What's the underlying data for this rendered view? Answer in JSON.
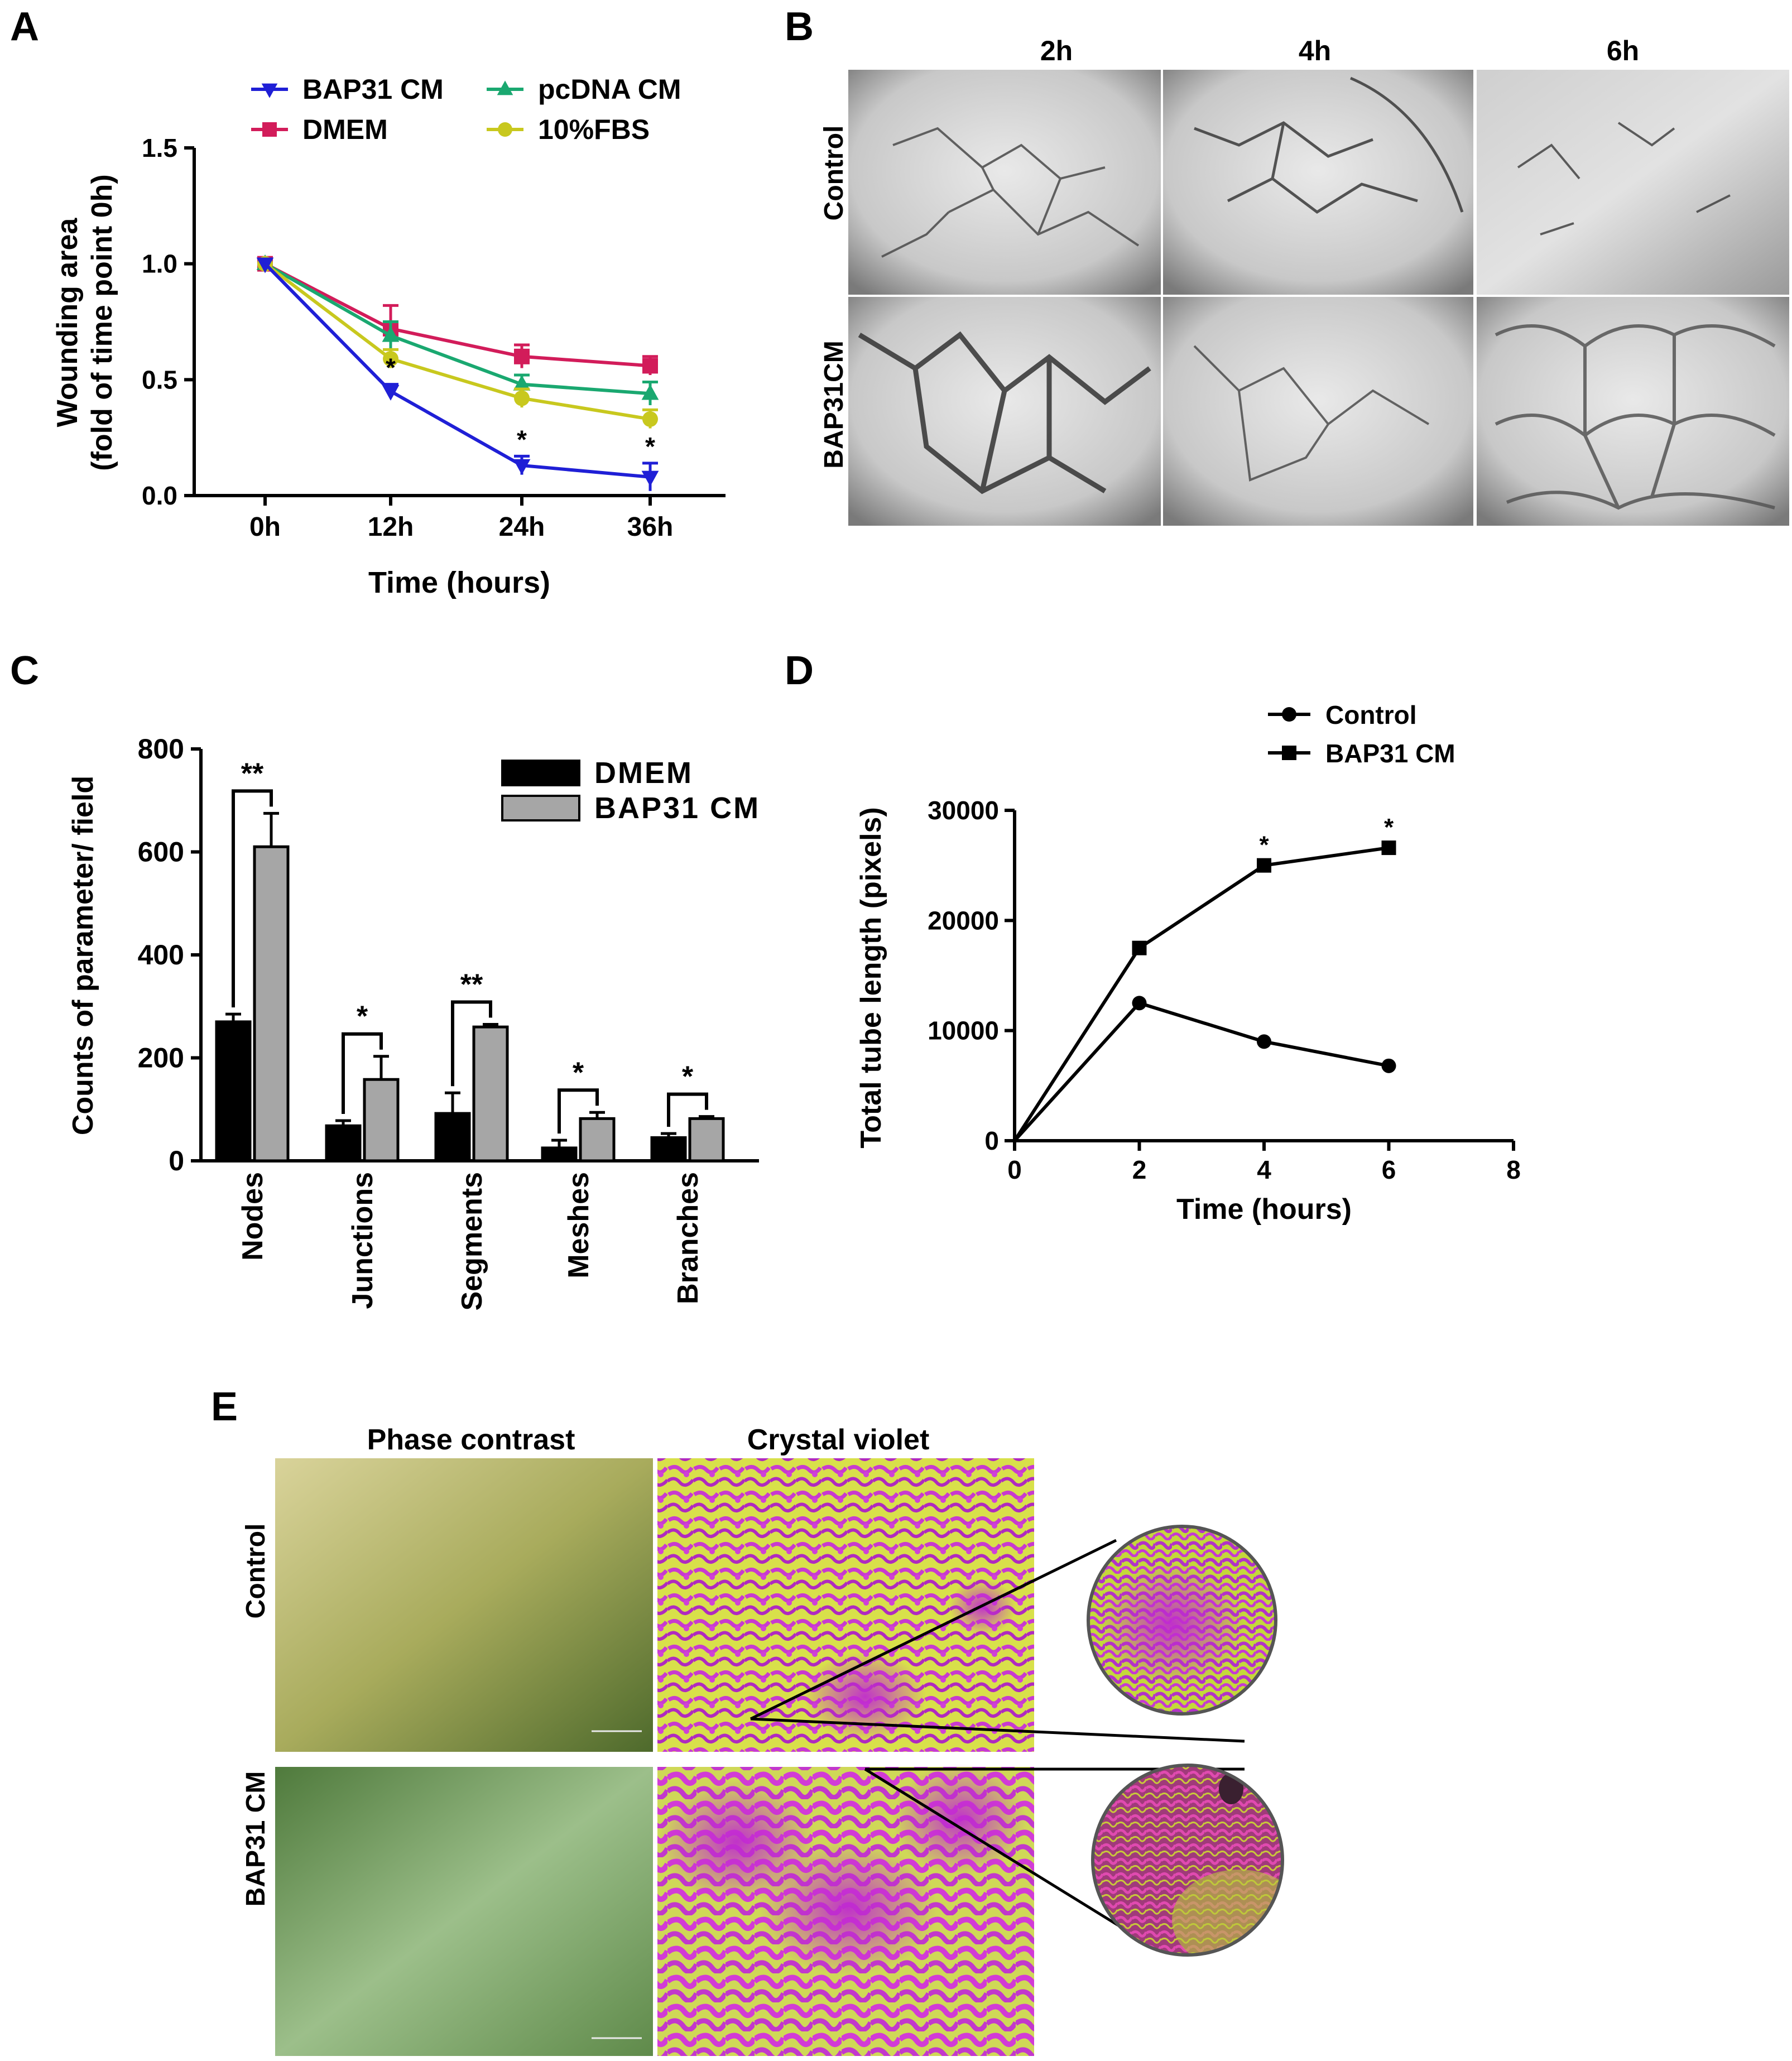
{
  "panels": {
    "A": {
      "letter": "A"
    },
    "B": {
      "letter": "B",
      "col_labels": [
        "2h",
        "4h",
        "6h"
      ],
      "row_labels": [
        "Control",
        "BAP31CM"
      ]
    },
    "C": {
      "letter": "C"
    },
    "D": {
      "letter": "D"
    },
    "E": {
      "letter": "E",
      "col_labels": [
        "Phase contrast",
        "Crystal violet"
      ],
      "row_labels": [
        "Control",
        "BAP31 CM"
      ]
    }
  },
  "chart_data": [
    {
      "id": "A",
      "type": "line",
      "xlabel": "Time (hours)",
      "ylabel_lines": [
        "Wounding area",
        "(fold of time point 0h)"
      ],
      "categories": [
        "0h",
        "12h",
        "24h",
        "36h"
      ],
      "ylim": [
        0,
        1.5
      ],
      "yticks": [
        "0.0",
        "0.5",
        "1.0",
        "1.5"
      ],
      "legend_position": "top",
      "series": [
        {
          "name": "BAP31 CM",
          "color": "#1f1fd6",
          "marker": "triangle-down",
          "values": [
            1.0,
            0.45,
            0.13,
            0.08
          ],
          "errors": [
            0.0,
            0.03,
            0.04,
            0.06
          ],
          "significance": [
            "",
            "*",
            "*",
            "*"
          ]
        },
        {
          "name": "DMEM",
          "color": "#d21c5a",
          "marker": "square",
          "values": [
            1.0,
            0.72,
            0.6,
            0.56
          ],
          "errors": [
            0.0,
            0.1,
            0.05,
            0.04
          ]
        },
        {
          "name": "pcDNA CM",
          "color": "#1aa870",
          "marker": "triangle-up",
          "values": [
            1.0,
            0.69,
            0.48,
            0.44
          ],
          "errors": [
            0.0,
            0.06,
            0.04,
            0.05
          ]
        },
        {
          "name": "10%FBS",
          "color": "#c8c81e",
          "marker": "circle",
          "values": [
            1.0,
            0.59,
            0.42,
            0.33
          ],
          "errors": [
            0.0,
            0.04,
            0.04,
            0.04
          ]
        }
      ]
    },
    {
      "id": "C",
      "type": "bar",
      "ylabel": "Counts of parameter/ field",
      "categories": [
        "Nodes",
        "Junctions",
        "Segments",
        "Meshes",
        "Branches"
      ],
      "ylim": [
        0,
        800
      ],
      "yticks": [
        "0",
        "200",
        "400",
        "600",
        "800"
      ],
      "legend_position": "top-right",
      "series": [
        {
          "name": "DMEM",
          "color": "#000000",
          "values": [
            270,
            68,
            92,
            25,
            45
          ],
          "errors": [
            15,
            10,
            40,
            15,
            8
          ]
        },
        {
          "name": "BAP31 CM",
          "color": "#a6a6a6",
          "values": [
            610,
            158,
            260,
            82,
            82
          ],
          "errors": [
            65,
            45,
            5,
            12,
            4
          ]
        }
      ],
      "significance": [
        "**",
        "*",
        "**",
        "*",
        "*"
      ]
    },
    {
      "id": "D",
      "type": "line",
      "xlabel": "Time (hours)",
      "ylabel": "Total  tube length (pixels)",
      "xlim": [
        0,
        8
      ],
      "xticks": [
        "0",
        "2",
        "4",
        "6",
        "8"
      ],
      "ylim": [
        0,
        30000
      ],
      "yticks": [
        "0",
        "10000",
        "20000",
        "30000"
      ],
      "legend_position": "top",
      "x": [
        0,
        2,
        4,
        6
      ],
      "series": [
        {
          "name": "Control",
          "marker": "circle",
          "values": [
            0,
            12500,
            9000,
            6800
          ]
        },
        {
          "name": "BAP31 CM",
          "marker": "square",
          "values": [
            0,
            17500,
            25000,
            26600
          ],
          "significance": [
            "",
            "",
            "*",
            "*"
          ]
        }
      ]
    }
  ]
}
